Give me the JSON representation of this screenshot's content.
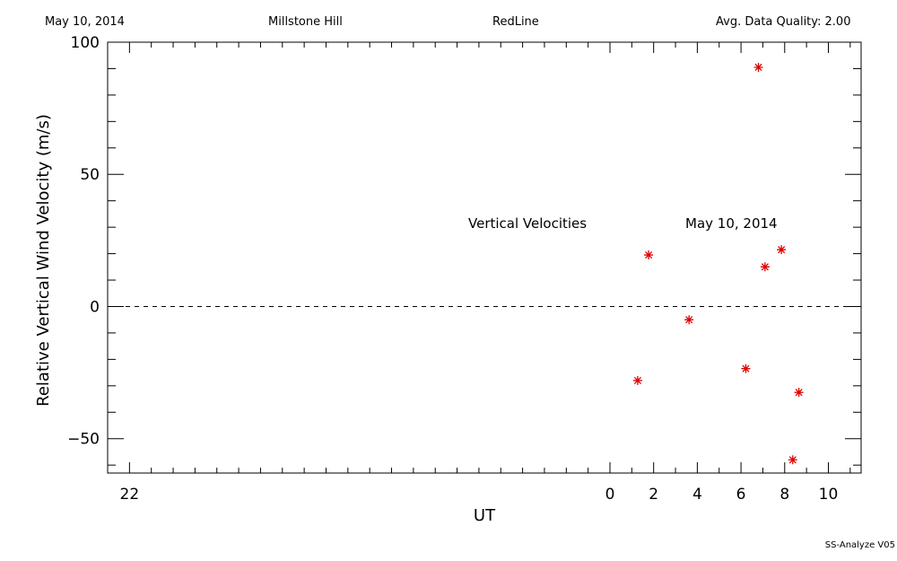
{
  "header": {
    "date": "May 10, 2014",
    "site": "Millstone Hill",
    "instrument": "RedLine",
    "quality": "Avg. Data Quality: 2.00"
  },
  "footer": {
    "software": "SS-Analyze V05"
  },
  "chart_data": {
    "type": "scatter",
    "title": "",
    "xlabel": "UT",
    "ylabel": "Relative Vertical Wind Velocity (m/s)",
    "xlim": [
      -23,
      11.5
    ],
    "ylim": [
      -63,
      100
    ],
    "x_ticks": [
      -22,
      0,
      2,
      4,
      6,
      8,
      10
    ],
    "x_tick_labels": [
      "22",
      "0",
      "2",
      "4",
      "6",
      "8",
      "10"
    ],
    "y_ticks": [
      -50,
      0,
      50,
      100
    ],
    "y_tick_labels": [
      "−50",
      "0",
      "50",
      "100"
    ],
    "zero_line": true,
    "marker": "asterisk",
    "marker_color": "#e00000",
    "annotations": [
      {
        "text": "Vertical Velocities"
      },
      {
        "text": "May 10, 2014"
      }
    ],
    "series": [
      {
        "points": [
          {
            "x": 1.27,
            "y": -28
          },
          {
            "x": 1.77,
            "y": 19.5
          },
          {
            "x": 3.62,
            "y": -5
          },
          {
            "x": 6.22,
            "y": -23.5
          },
          {
            "x": 6.8,
            "y": 90.5
          },
          {
            "x": 7.1,
            "y": 15
          },
          {
            "x": 7.85,
            "y": 21.5
          },
          {
            "x": 8.37,
            "y": -58
          },
          {
            "x": 8.65,
            "y": -32.5
          }
        ]
      }
    ]
  }
}
